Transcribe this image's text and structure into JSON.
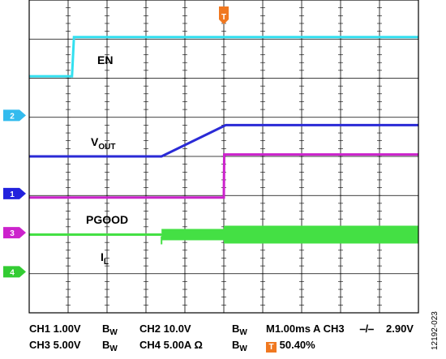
{
  "chart_data": {
    "type": "line",
    "title": "",
    "xlabel": "",
    "ylabel": "",
    "time_axis": {
      "unit": "ms",
      "per_div": 1.0,
      "divisions": 10,
      "trigger_position_percent": 50.4
    },
    "vertical_divisions": 8,
    "grid": true,
    "series": [
      {
        "name": "EN",
        "channel": "2",
        "color": "#33e0f0",
        "x": [
          -5.0,
          -3.9,
          -3.85,
          5.0
        ],
        "y": [
          2.05,
          2.05,
          3.05,
          3.05
        ]
      },
      {
        "name": "VOUT",
        "channel": "1",
        "color": "#2a2ad6",
        "x": [
          -5.0,
          -1.6,
          0.05,
          5.0
        ],
        "y": [
          0.0,
          0.0,
          0.8,
          0.8
        ]
      },
      {
        "name": "PGOOD",
        "channel": "3",
        "color": "#cc22cc",
        "x": [
          -5.0,
          0.0,
          0.01,
          5.0
        ],
        "y": [
          -1.05,
          -1.05,
          0.05,
          0.05
        ]
      },
      {
        "name": "IL",
        "channel": "4",
        "color": "#44e044",
        "x": [
          -5.0,
          -1.6,
          5.0
        ],
        "y": [
          -2.0,
          -2.0,
          -2.0
        ]
      }
    ],
    "channel_markers": [
      {
        "label": "2",
        "color": "#33bbee",
        "level": 1.05
      },
      {
        "label": "1",
        "color": "#2222dd",
        "level": -0.95
      },
      {
        "label": "3",
        "color": "#cc22cc",
        "level": -1.95
      },
      {
        "label": "4",
        "color": "#33cc33",
        "level": -2.95
      }
    ],
    "trace_labels": {
      "en": "EN",
      "vout_main": "V",
      "vout_sub": "OUT",
      "pgood": "PGOOD",
      "il_main": "I",
      "il_sub": "L"
    },
    "trigger_marker": {
      "label": "T",
      "color": "#f07820"
    },
    "readout": {
      "row1": {
        "ch1": "CH1  1.00V",
        "bw1": "B",
        "bw1_sub": "W",
        "ch2": "CH2  10.0V",
        "bw2": "B",
        "bw2_sub": "W",
        "timebase": "M1.00ms A  CH3",
        "edge": "⎯/⎯",
        "level": "2.90V"
      },
      "row2": {
        "ch3": "CH3  5.00V",
        "bw3": "B",
        "bw3_sub": "W",
        "ch4": "CH4  5.00A  Ω",
        "bw4": "B",
        "bw4_sub": "W",
        "trig_icon": "T",
        "trig_pos": "50.40%"
      }
    },
    "figure_id": "12192-023"
  }
}
